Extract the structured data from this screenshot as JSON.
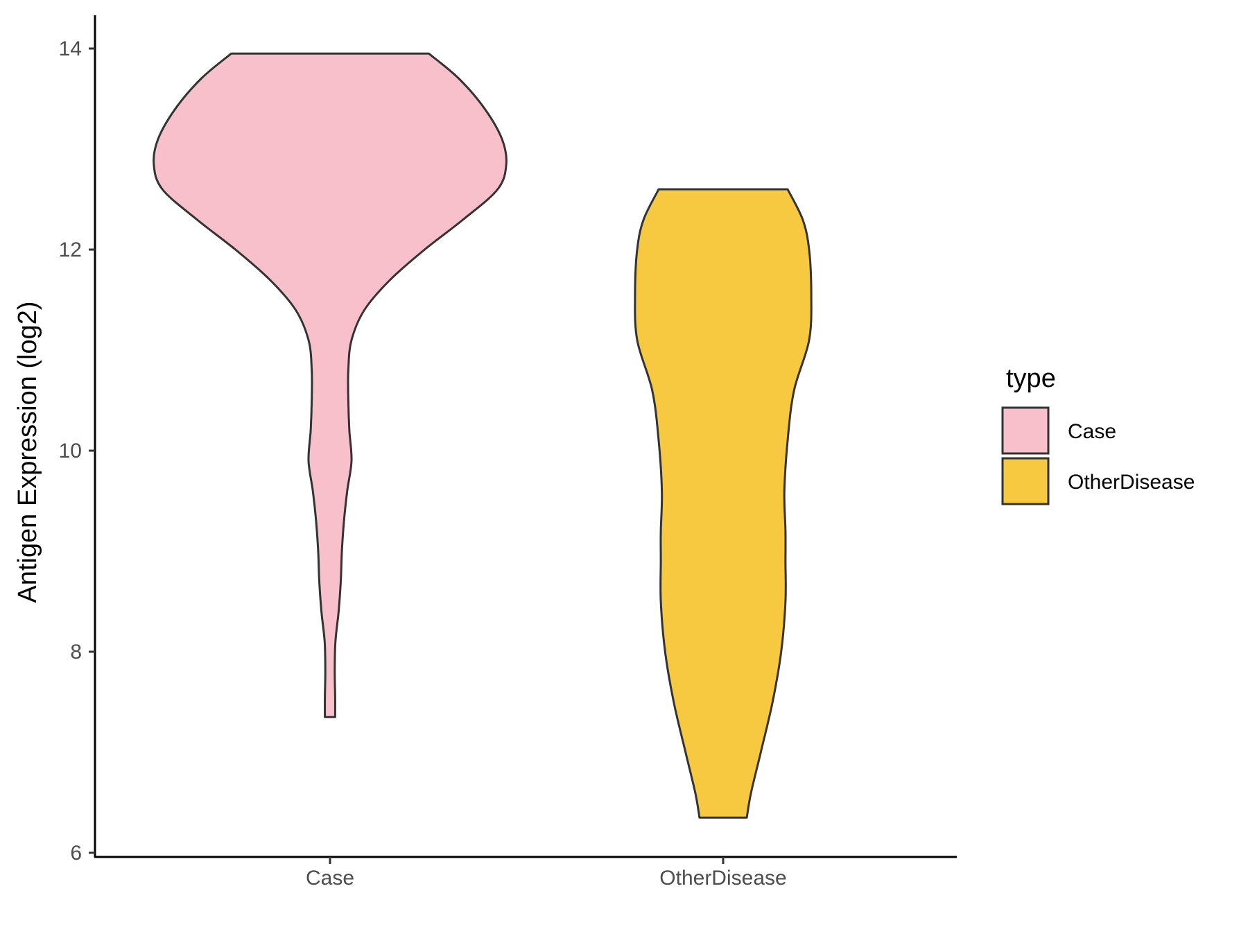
{
  "chart_data": {
    "type": "violin",
    "ylabel": "Antigen Expression (log2)",
    "xlabel": "",
    "ylim": [
      6,
      14
    ],
    "yticks": [
      6,
      8,
      10,
      12,
      14
    ],
    "categories": [
      "Case",
      "OtherDisease"
    ],
    "legend": {
      "title": "type",
      "position": "right"
    },
    "grid": false,
    "series": [
      {
        "name": "Case",
        "color": "#F8C0CB",
        "y_min": 7.35,
        "y_max": 13.95,
        "density_profile": [
          [
            13.95,
            0.46
          ],
          [
            13.7,
            0.6
          ],
          [
            13.4,
            0.72
          ],
          [
            13.1,
            0.8
          ],
          [
            12.85,
            0.82
          ],
          [
            12.6,
            0.78
          ],
          [
            12.3,
            0.62
          ],
          [
            12.0,
            0.44
          ],
          [
            11.7,
            0.28
          ],
          [
            11.4,
            0.16
          ],
          [
            11.1,
            0.1
          ],
          [
            10.8,
            0.085
          ],
          [
            10.5,
            0.085
          ],
          [
            10.2,
            0.09
          ],
          [
            9.9,
            0.1
          ],
          [
            9.6,
            0.08
          ],
          [
            9.3,
            0.065
          ],
          [
            9.0,
            0.055
          ],
          [
            8.7,
            0.05
          ],
          [
            8.4,
            0.04
          ],
          [
            8.1,
            0.025
          ],
          [
            7.8,
            0.022
          ],
          [
            7.55,
            0.024
          ],
          [
            7.35,
            0.024
          ]
        ]
      },
      {
        "name": "OtherDisease",
        "color": "#F6C940",
        "y_min": 6.35,
        "y_max": 12.6,
        "density_profile": [
          [
            12.6,
            0.3
          ],
          [
            12.3,
            0.37
          ],
          [
            12.0,
            0.4
          ],
          [
            11.55,
            0.41
          ],
          [
            11.1,
            0.4
          ],
          [
            10.6,
            0.33
          ],
          [
            10.1,
            0.3
          ],
          [
            9.6,
            0.285
          ],
          [
            9.2,
            0.29
          ],
          [
            8.9,
            0.29
          ],
          [
            8.5,
            0.29
          ],
          [
            8.0,
            0.27
          ],
          [
            7.5,
            0.23
          ],
          [
            7.0,
            0.175
          ],
          [
            6.6,
            0.13
          ],
          [
            6.35,
            0.11
          ]
        ]
      }
    ]
  }
}
